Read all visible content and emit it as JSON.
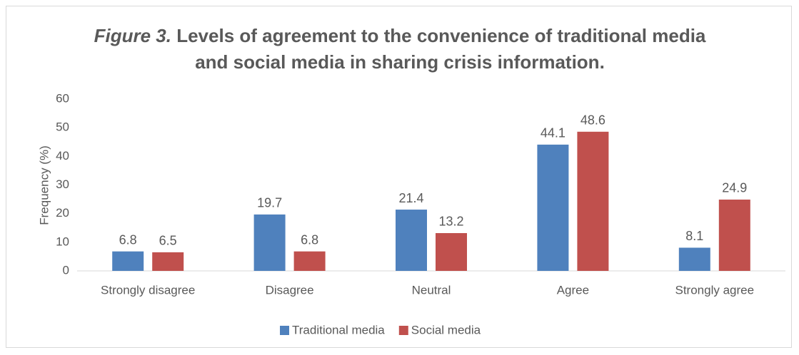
{
  "chart_data": {
    "type": "bar",
    "title_prefix": "Figure 3.",
    "title": "Levels of agreement to the convenience of traditional media and social media in sharing crisis information.",
    "y_label": "Frequency (%)",
    "categories": [
      "Strongly disagree",
      "Disagree",
      "Neutral",
      "Agree",
      "Strongly agree"
    ],
    "series": [
      {
        "name": "Traditional media",
        "color": "#4f81bd",
        "values": [
          6.8,
          19.7,
          21.4,
          44.1,
          8.1
        ]
      },
      {
        "name": "Social media",
        "color": "#c0504d",
        "values": [
          6.5,
          6.8,
          13.2,
          48.6,
          24.9
        ]
      }
    ],
    "ylim": [
      0,
      60
    ],
    "yticks": [
      0,
      10,
      20,
      30,
      40,
      50,
      60
    ],
    "grid": false,
    "legend": "bottom"
  }
}
